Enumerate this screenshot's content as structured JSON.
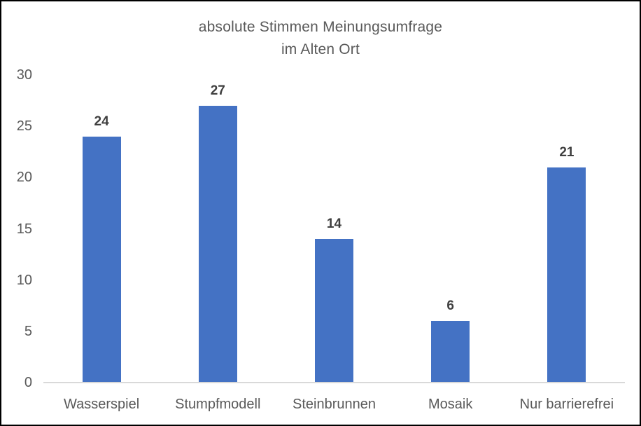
{
  "chart_data": {
    "type": "bar",
    "title_lines": [
      "absolute Stimmen Meinungsumfrage",
      "im Alten Ort"
    ],
    "title": "absolute Stimmen Meinungsumfrage im Alten Ort",
    "categories": [
      "Wasserspiel",
      "Stumpfmodell",
      "Steinbrunnen",
      "Mosaik",
      "Nur barrierefrei"
    ],
    "values": [
      24,
      27,
      14,
      6,
      21
    ],
    "data_labels": [
      "24",
      "27",
      "14",
      "6",
      "21"
    ],
    "y_ticks": [
      0,
      5,
      10,
      15,
      20,
      25,
      30
    ],
    "ylim": [
      0,
      30
    ],
    "xlabel": "",
    "ylabel": "",
    "grid": false,
    "legend_position": "none",
    "bar_color": "#4472C4",
    "axis_line_color": "#D9D9D9",
    "title_color": "#595959",
    "tick_label_color": "#595959",
    "data_label_color": "#3F3F3F"
  }
}
